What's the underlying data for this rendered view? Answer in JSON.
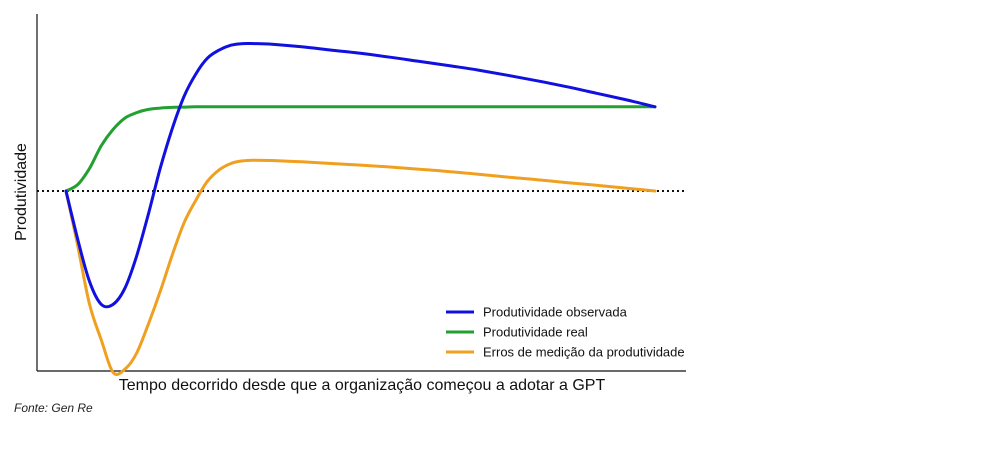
{
  "chart_data": {
    "type": "line",
    "title": "",
    "xlabel": "Tempo decorrido desde que a organização começou a adotar a GPT",
    "ylabel": "Produtividade",
    "xlim": [
      0,
      100
    ],
    "ylim": [
      -50,
      50
    ],
    "baseline": {
      "y": 0,
      "style": "dotted"
    },
    "x_ticks": [],
    "y_ticks": [],
    "grid": false,
    "legend_position": "bottom-right",
    "series": [
      {
        "name": "Produtividade observada",
        "color": "#1010e0",
        "x": [
          0,
          2,
          4,
          6,
          8,
          10,
          12,
          14,
          16,
          18,
          20,
          22,
          24,
          26,
          28,
          30,
          32,
          35,
          40,
          45,
          50,
          55,
          60,
          65,
          70,
          75,
          80,
          85,
          90,
          95,
          100
        ],
        "y": [
          0,
          -15,
          -28,
          -35,
          -35,
          -30,
          -20,
          -7,
          7,
          19,
          29,
          36,
          41,
          43.5,
          45,
          45.5,
          45.5,
          45.3,
          44.5,
          43.5,
          42.5,
          41.3,
          40,
          38.7,
          37.3,
          35.7,
          34,
          32.2,
          30.2,
          28.2,
          26
        ]
      },
      {
        "name": "Produtividade real",
        "color": "#22a030",
        "x": [
          0,
          2,
          4,
          6,
          8,
          10,
          12,
          14,
          16,
          18,
          20,
          22,
          25,
          28,
          32,
          40,
          50,
          60,
          70,
          80,
          90,
          100
        ],
        "y": [
          0,
          2,
          7,
          14,
          19,
          22.5,
          24.2,
          25.2,
          25.6,
          25.8,
          25.9,
          26,
          26,
          26,
          26,
          26,
          26,
          26,
          26,
          26,
          26,
          26
        ]
      },
      {
        "name": "Erros de medição da produtividade",
        "color": "#f0a020",
        "x": [
          0,
          2,
          4,
          6,
          8,
          10,
          12,
          14,
          16,
          18,
          20,
          22,
          24,
          26,
          28,
          30,
          32,
          35,
          40,
          45,
          50,
          55,
          60,
          65,
          70,
          75,
          80,
          85,
          90,
          95,
          100
        ],
        "y": [
          0,
          -17,
          -35,
          -46,
          -56,
          -55,
          -50,
          -41,
          -31,
          -20,
          -10,
          -3,
          3,
          6.5,
          8.5,
          9.3,
          9.5,
          9.4,
          9,
          8.5,
          8,
          7.4,
          6.7,
          6,
          5.2,
          4.3,
          3.5,
          2.6,
          1.8,
          0.9,
          0
        ]
      }
    ]
  },
  "source": "Fonte: Gen Re"
}
